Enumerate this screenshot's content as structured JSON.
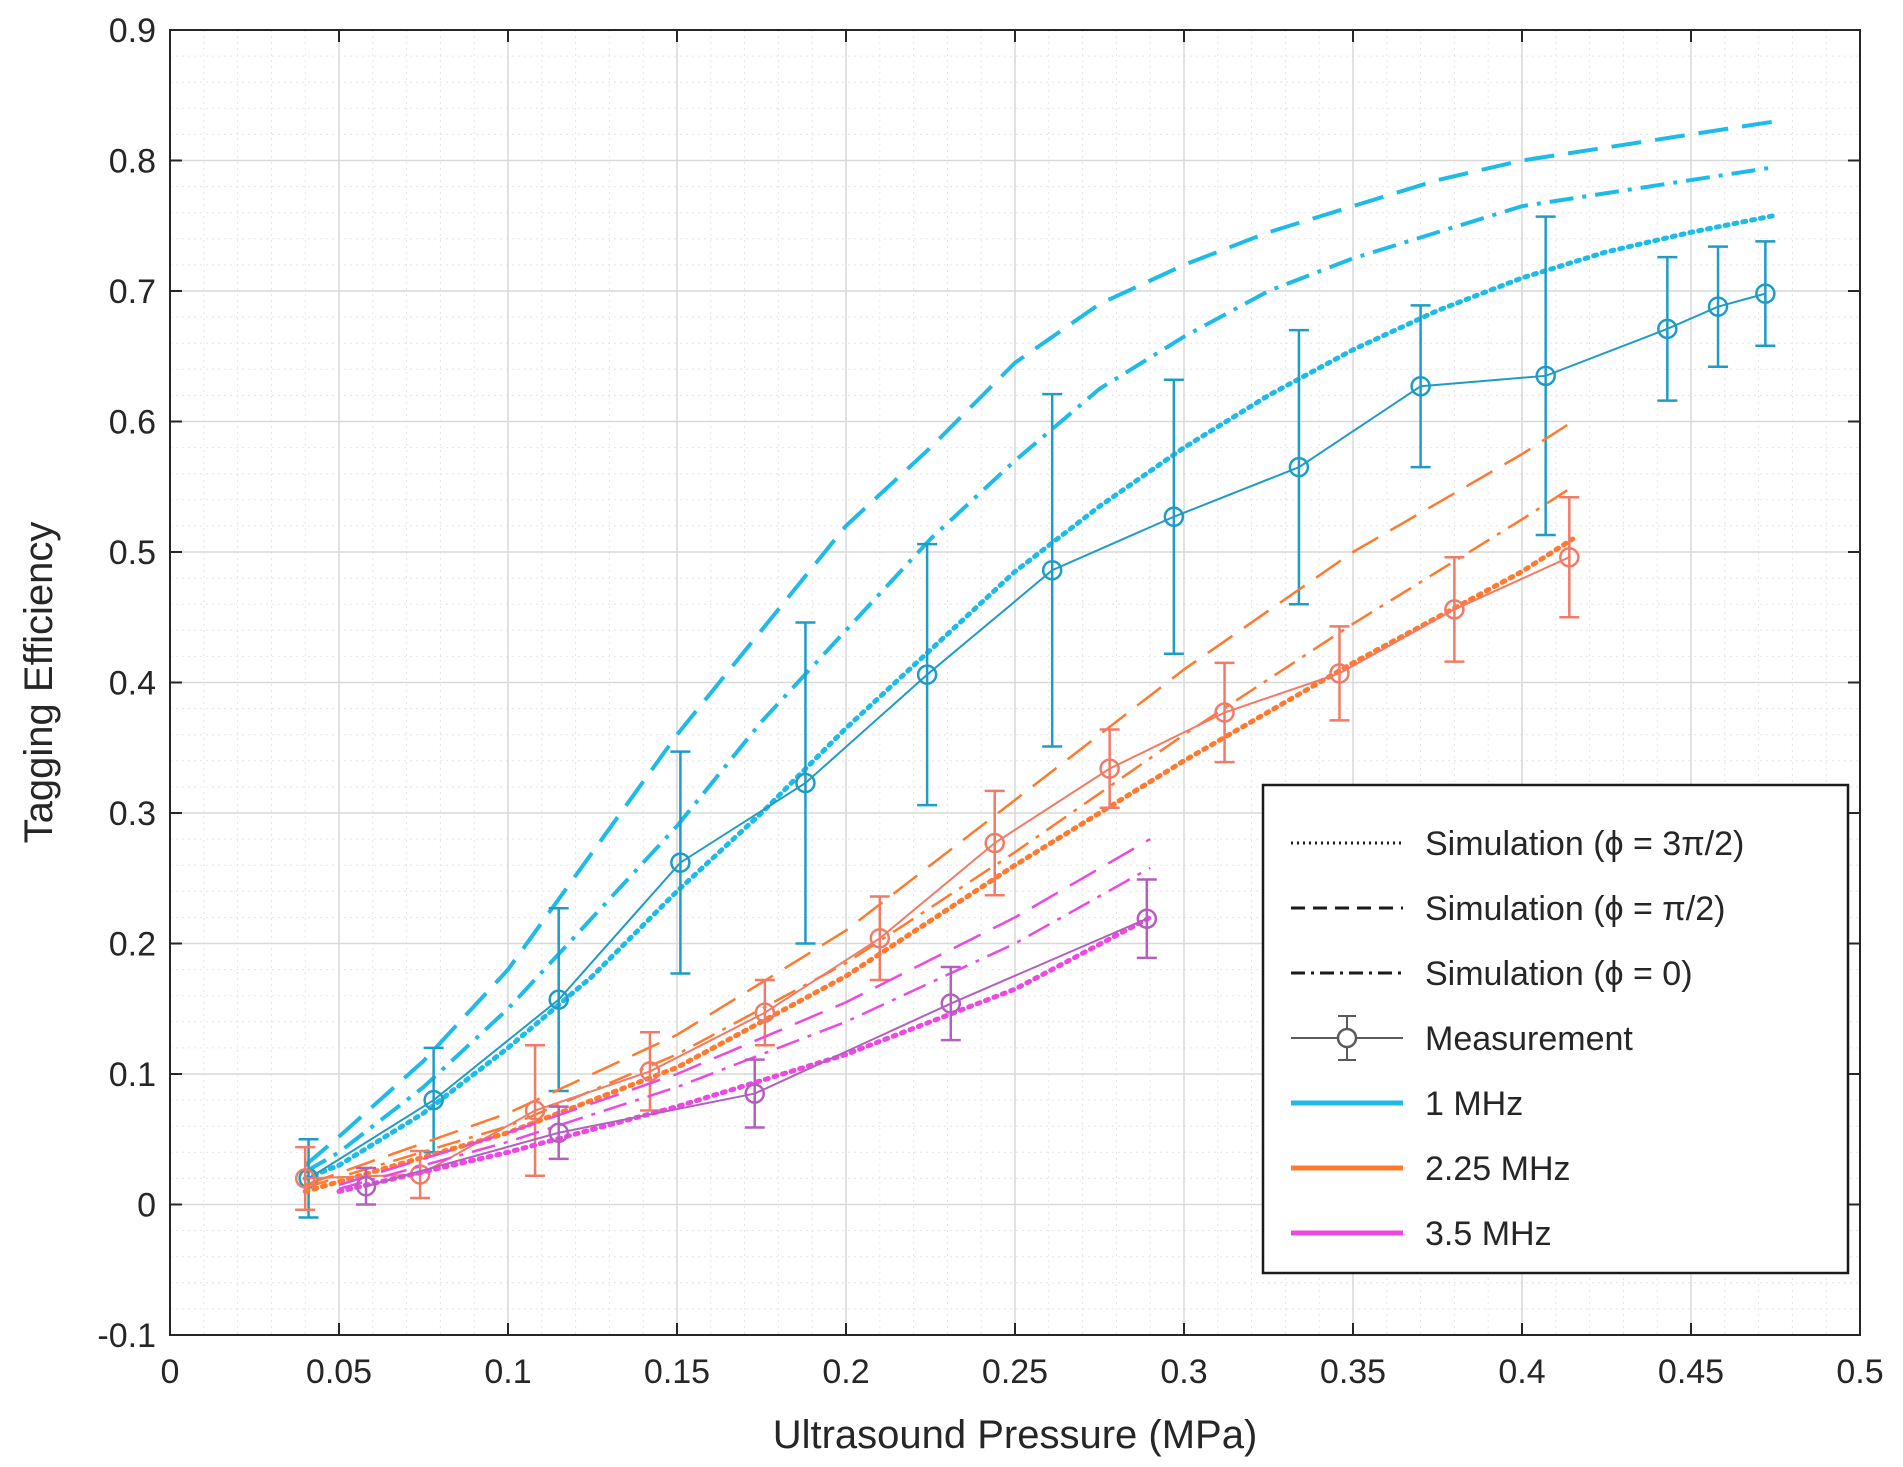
{
  "chart_data": {
    "type": "line",
    "title": "",
    "xlabel": "Ultrasound Pressure (MPa)",
    "ylabel": "Tagging Efficiency",
    "xlim": [
      0,
      0.5
    ],
    "ylim": [
      -0.1,
      0.9
    ],
    "grid": true,
    "minor_grid": true,
    "x_ticks": [
      0,
      0.05,
      0.1,
      0.15,
      0.2,
      0.25,
      0.3,
      0.35,
      0.4,
      0.45,
      0.5
    ],
    "x_tick_labels": [
      "0",
      "0.05",
      "0.1",
      "0.15",
      "0.2",
      "0.25",
      "0.3",
      "0.35",
      "0.4",
      "0.45",
      "0.5"
    ],
    "y_ticks": [
      -0.1,
      0,
      0.1,
      0.2,
      0.3,
      0.4,
      0.5,
      0.6,
      0.7,
      0.8,
      0.9
    ],
    "y_tick_labels": [
      "-0.1",
      "0",
      "0.1",
      "0.2",
      "0.3",
      "0.4",
      "0.5",
      "0.6",
      "0.7",
      "0.8",
      "0.9"
    ],
    "colors": {
      "1 MHz": "#1fbbe8",
      "1 MHz measurement": "#1f9cc6",
      "2.25 MHz": "#ff7a2e",
      "2.25 MHz measurement": "#f07b66",
      "3.5 MHz": "#ee48e2",
      "3.5 MHz measurement": "#b45fbf"
    },
    "legend": {
      "position": "bottom-right",
      "entries": [
        {
          "label": "Simulation (ϕ = 3π/2)",
          "style": "dotted",
          "color": "#1a1a1a"
        },
        {
          "label": "Simulation (ϕ = π/2)",
          "style": "dashed",
          "color": "#1a1a1a"
        },
        {
          "label": "Simulation (ϕ = 0)",
          "style": "dashdot",
          "color": "#1a1a1a"
        },
        {
          "label": "Measurement",
          "style": "errorbar",
          "color": "#5a5a5a"
        },
        {
          "label": "1 MHz",
          "style": "solid",
          "color": "#1fbbe8"
        },
        {
          "label": "2.25 MHz",
          "style": "solid",
          "color": "#ff7a2e"
        },
        {
          "label": "3.5 MHz",
          "style": "solid",
          "color": "#ee48e2"
        }
      ]
    },
    "series": [
      {
        "name": "1 MHz Simulation (ϕ = π/2)",
        "freq": "1 MHz",
        "style": "dashed",
        "x": [
          0.04,
          0.05,
          0.075,
          0.1,
          0.125,
          0.15,
          0.175,
          0.2,
          0.225,
          0.25,
          0.275,
          0.3,
          0.325,
          0.35,
          0.375,
          0.4,
          0.425,
          0.45,
          0.475
        ],
        "y": [
          0.03,
          0.052,
          0.11,
          0.18,
          0.27,
          0.36,
          0.44,
          0.52,
          0.58,
          0.645,
          0.69,
          0.72,
          0.745,
          0.765,
          0.785,
          0.8,
          0.81,
          0.82,
          0.83
        ]
      },
      {
        "name": "1 MHz Simulation (ϕ = 0)",
        "freq": "1 MHz",
        "style": "dashdot",
        "x": [
          0.04,
          0.05,
          0.075,
          0.1,
          0.125,
          0.15,
          0.175,
          0.2,
          0.225,
          0.25,
          0.275,
          0.3,
          0.325,
          0.35,
          0.375,
          0.4,
          0.425,
          0.45,
          0.475
        ],
        "y": [
          0.025,
          0.04,
          0.09,
          0.15,
          0.22,
          0.29,
          0.37,
          0.44,
          0.51,
          0.57,
          0.625,
          0.665,
          0.7,
          0.725,
          0.745,
          0.765,
          0.775,
          0.785,
          0.795
        ]
      },
      {
        "name": "1 MHz Simulation (ϕ = 3π/2)",
        "freq": "1 MHz",
        "style": "dotted",
        "x": [
          0.04,
          0.05,
          0.075,
          0.1,
          0.125,
          0.15,
          0.175,
          0.2,
          0.225,
          0.25,
          0.275,
          0.3,
          0.325,
          0.35,
          0.375,
          0.4,
          0.425,
          0.45,
          0.475
        ],
        "y": [
          0.02,
          0.03,
          0.07,
          0.12,
          0.175,
          0.24,
          0.3,
          0.365,
          0.425,
          0.485,
          0.535,
          0.58,
          0.62,
          0.655,
          0.685,
          0.71,
          0.73,
          0.745,
          0.758
        ]
      },
      {
        "name": "1 MHz Measurement",
        "freq": "1 MHz",
        "style": "measurement",
        "x": [
          0.041,
          0.078,
          0.115,
          0.151,
          0.188,
          0.224,
          0.261,
          0.297,
          0.334,
          0.37,
          0.407,
          0.443,
          0.458,
          0.472
        ],
        "y": [
          0.02,
          0.08,
          0.157,
          0.262,
          0.323,
          0.406,
          0.486,
          0.527,
          0.565,
          0.627,
          0.635,
          0.671,
          0.688,
          0.698
        ],
        "err": [
          0.03,
          0.04,
          0.07,
          0.085,
          0.123,
          0.1,
          0.135,
          0.105,
          0.105,
          0.062,
          0.122,
          0.055,
          0.046,
          0.04
        ]
      },
      {
        "name": "2.25 MHz Simulation (ϕ = π/2)",
        "freq": "2.25 MHz",
        "style": "dashed",
        "x": [
          0.04,
          0.1,
          0.15,
          0.2,
          0.25,
          0.3,
          0.35,
          0.4,
          0.415
        ],
        "y": [
          0.015,
          0.07,
          0.13,
          0.21,
          0.31,
          0.41,
          0.5,
          0.575,
          0.6
        ]
      },
      {
        "name": "2.25 MHz Simulation (ϕ = 0)",
        "freq": "2.25 MHz",
        "style": "dashdot",
        "x": [
          0.04,
          0.1,
          0.15,
          0.2,
          0.25,
          0.3,
          0.35,
          0.4,
          0.415
        ],
        "y": [
          0.013,
          0.06,
          0.115,
          0.185,
          0.27,
          0.36,
          0.445,
          0.525,
          0.55
        ]
      },
      {
        "name": "2.25 MHz Simulation (ϕ = 3π/2)",
        "freq": "2.25 MHz",
        "style": "dotted",
        "x": [
          0.04,
          0.1,
          0.15,
          0.2,
          0.25,
          0.3,
          0.35,
          0.4,
          0.415
        ],
        "y": [
          0.01,
          0.055,
          0.105,
          0.175,
          0.26,
          0.34,
          0.415,
          0.485,
          0.51
        ]
      },
      {
        "name": "2.25 MHz Measurement",
        "freq": "2.25 MHz",
        "style": "measurement",
        "x": [
          0.04,
          0.074,
          0.108,
          0.142,
          0.176,
          0.21,
          0.244,
          0.278,
          0.312,
          0.346,
          0.38,
          0.414
        ],
        "y": [
          0.02,
          0.023,
          0.072,
          0.102,
          0.147,
          0.204,
          0.277,
          0.334,
          0.377,
          0.407,
          0.456,
          0.496
        ],
        "err": [
          0.024,
          0.018,
          0.05,
          0.03,
          0.025,
          0.032,
          0.04,
          0.03,
          0.038,
          0.036,
          0.04,
          0.046
        ]
      },
      {
        "name": "3.5 MHz Simulation (ϕ = π/2)",
        "freq": "3.5 MHz",
        "style": "dashed",
        "x": [
          0.05,
          0.1,
          0.15,
          0.2,
          0.25,
          0.29
        ],
        "y": [
          0.015,
          0.055,
          0.1,
          0.155,
          0.22,
          0.28
        ]
      },
      {
        "name": "3.5 MHz Simulation (ϕ = 0)",
        "freq": "3.5 MHz",
        "style": "dashdot",
        "x": [
          0.05,
          0.1,
          0.15,
          0.2,
          0.25,
          0.29
        ],
        "y": [
          0.012,
          0.048,
          0.09,
          0.14,
          0.2,
          0.258
        ]
      },
      {
        "name": "3.5 MHz Simulation (ϕ = 3π/2)",
        "freq": "3.5 MHz",
        "style": "dotted",
        "x": [
          0.05,
          0.1,
          0.15,
          0.2,
          0.25,
          0.29
        ],
        "y": [
          0.01,
          0.04,
          0.075,
          0.115,
          0.165,
          0.22
        ]
      },
      {
        "name": "3.5 MHz Measurement",
        "freq": "3.5 MHz",
        "style": "measurement",
        "x": [
          0.058,
          0.115,
          0.173,
          0.231,
          0.289
        ],
        "y": [
          0.014,
          0.055,
          0.085,
          0.154,
          0.219
        ],
        "err": [
          0.014,
          0.02,
          0.026,
          0.028,
          0.03
        ]
      }
    ]
  }
}
